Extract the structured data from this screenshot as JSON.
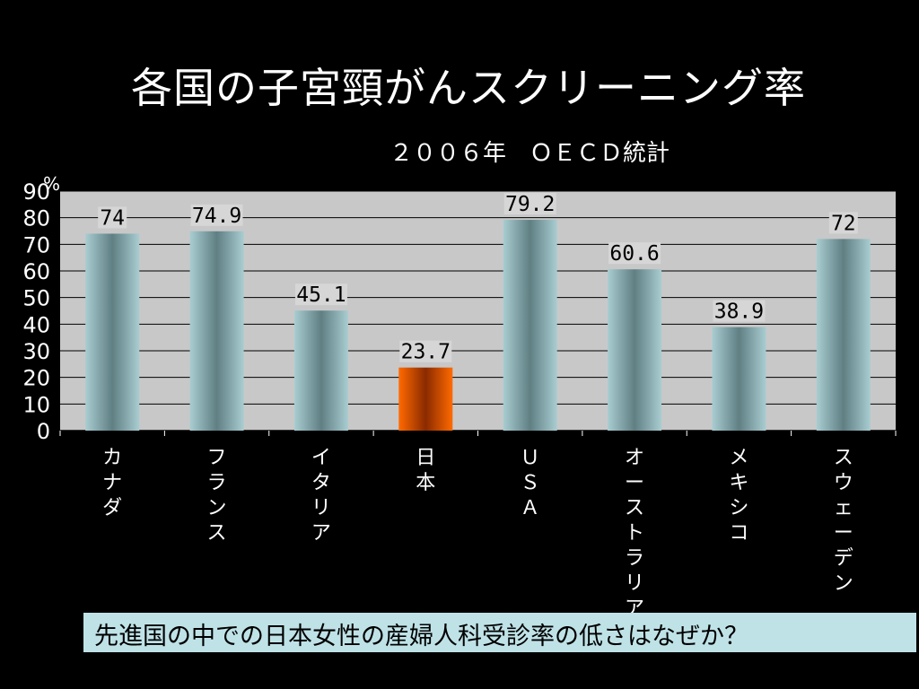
{
  "slide": {
    "title": "各国の子宮頸がんスクリーニング率",
    "subtitle": "２００６年　ＯＥＣＤ統計",
    "footer": "先進国の中での日本女性の産婦人科受診率の低さはなぜか？"
  },
  "chart_data": {
    "type": "bar",
    "title": "各国の子宮頸がんスクリーニング率",
    "subtitle": "２００６年　ＯＥＣＤ統計",
    "ylabel": "%",
    "ylim": [
      0,
      90
    ],
    "yticks": [
      0,
      10,
      20,
      30,
      40,
      50,
      60,
      70,
      80,
      90
    ],
    "categories": [
      "カナダ",
      "フランス",
      "イタリア",
      "日本",
      "ＵＳＡ",
      "オーストラリア",
      "メキシコ",
      "スウェーデン"
    ],
    "values": [
      74,
      74.9,
      45.1,
      23.7,
      79.2,
      60.6,
      38.9,
      72
    ],
    "data_labels": [
      "74",
      "74.9",
      "45.1",
      "23.7",
      "79.2",
      "60.6",
      "38.9",
      "72"
    ],
    "highlight_category": "日本",
    "grid": true,
    "colors": {
      "plot_bg": "#c8c8c8",
      "bar": "#a9cdd1",
      "bar_dark": "#5f7f83",
      "highlight": "#ff6a00",
      "highlight_dark": "#8a2a00",
      "label_bg": "#d6d6d6",
      "text": "#ffffff"
    }
  }
}
